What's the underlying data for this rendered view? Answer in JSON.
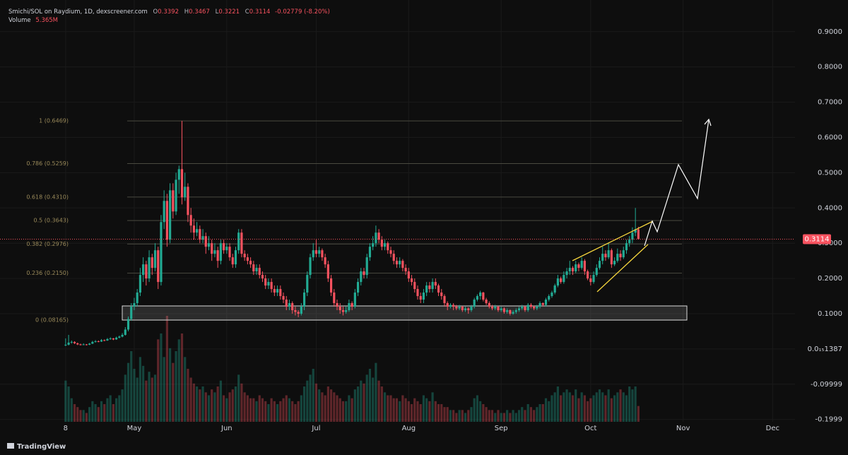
{
  "chart_data": {
    "type": "candlestick",
    "title": "Smichi/SOL on Raydium, 1D, dexscreener.com",
    "ohlc_labels": [
      "O",
      "H",
      "L",
      "C"
    ],
    "change": "-0.02779 (-8.20%)",
    "up_color": "#22ab94",
    "down_color": "#f7525f",
    "candles": [
      [
        0.01,
        0.03,
        0.008,
        0.012
      ],
      [
        0.012,
        0.04,
        0.01,
        0.018
      ],
      [
        0.018,
        0.024,
        0.015,
        0.02
      ],
      [
        0.02,
        0.022,
        0.014,
        0.016
      ],
      [
        0.016,
        0.018,
        0.011,
        0.013
      ],
      [
        0.013,
        0.015,
        0.01,
        0.012
      ],
      [
        0.012,
        0.016,
        0.011,
        0.013
      ],
      [
        0.013,
        0.014,
        0.01,
        0.012
      ],
      [
        0.012,
        0.017,
        0.011,
        0.015
      ],
      [
        0.015,
        0.023,
        0.014,
        0.02
      ],
      [
        0.02,
        0.025,
        0.018,
        0.022
      ],
      [
        0.022,
        0.024,
        0.019,
        0.021
      ],
      [
        0.021,
        0.028,
        0.02,
        0.025
      ],
      [
        0.025,
        0.027,
        0.022,
        0.024
      ],
      [
        0.024,
        0.031,
        0.023,
        0.028
      ],
      [
        0.028,
        0.033,
        0.026,
        0.03
      ],
      [
        0.03,
        0.031,
        0.025,
        0.027
      ],
      [
        0.027,
        0.035,
        0.026,
        0.032
      ],
      [
        0.032,
        0.038,
        0.03,
        0.035
      ],
      [
        0.035,
        0.045,
        0.033,
        0.04
      ],
      [
        0.04,
        0.062,
        0.038,
        0.055
      ],
      [
        0.055,
        0.092,
        0.05,
        0.085
      ],
      [
        0.085,
        0.13,
        0.08,
        0.12
      ],
      [
        0.12,
        0.145,
        0.11,
        0.13
      ],
      [
        0.13,
        0.17,
        0.12,
        0.16
      ],
      [
        0.16,
        0.23,
        0.15,
        0.21
      ],
      [
        0.21,
        0.26,
        0.19,
        0.24
      ],
      [
        0.24,
        0.25,
        0.18,
        0.2
      ],
      [
        0.2,
        0.28,
        0.19,
        0.26
      ],
      [
        0.26,
        0.27,
        0.21,
        0.23
      ],
      [
        0.23,
        0.3,
        0.22,
        0.28
      ],
      [
        0.28,
        0.29,
        0.17,
        0.19
      ],
      [
        0.19,
        0.38,
        0.18,
        0.36
      ],
      [
        0.36,
        0.45,
        0.34,
        0.42
      ],
      [
        0.42,
        0.44,
        0.29,
        0.31
      ],
      [
        0.31,
        0.47,
        0.3,
        0.45
      ],
      [
        0.45,
        0.47,
        0.37,
        0.39
      ],
      [
        0.39,
        0.5,
        0.38,
        0.48
      ],
      [
        0.48,
        0.52,
        0.44,
        0.51
      ],
      [
        0.51,
        0.6469,
        0.41,
        0.43
      ],
      [
        0.43,
        0.5,
        0.42,
        0.46
      ],
      [
        0.46,
        0.47,
        0.36,
        0.38
      ],
      [
        0.38,
        0.4,
        0.33,
        0.35
      ],
      [
        0.35,
        0.37,
        0.31,
        0.33
      ],
      [
        0.33,
        0.36,
        0.32,
        0.34
      ],
      [
        0.34,
        0.35,
        0.3,
        0.31
      ],
      [
        0.31,
        0.34,
        0.3,
        0.32
      ],
      [
        0.32,
        0.33,
        0.27,
        0.29
      ],
      [
        0.29,
        0.32,
        0.28,
        0.3
      ],
      [
        0.3,
        0.31,
        0.25,
        0.27
      ],
      [
        0.27,
        0.3,
        0.26,
        0.28
      ],
      [
        0.28,
        0.29,
        0.23,
        0.25
      ],
      [
        0.25,
        0.31,
        0.24,
        0.3
      ],
      [
        0.3,
        0.31,
        0.27,
        0.28
      ],
      [
        0.28,
        0.3,
        0.27,
        0.29
      ],
      [
        0.29,
        0.3,
        0.25,
        0.26
      ],
      [
        0.26,
        0.27,
        0.23,
        0.24
      ],
      [
        0.24,
        0.29,
        0.23,
        0.28
      ],
      [
        0.28,
        0.34,
        0.27,
        0.33
      ],
      [
        0.33,
        0.34,
        0.26,
        0.27
      ],
      [
        0.27,
        0.28,
        0.25,
        0.26
      ],
      [
        0.26,
        0.27,
        0.24,
        0.25
      ],
      [
        0.25,
        0.26,
        0.23,
        0.24
      ],
      [
        0.24,
        0.25,
        0.21,
        0.22
      ],
      [
        0.22,
        0.24,
        0.21,
        0.23
      ],
      [
        0.23,
        0.24,
        0.2,
        0.21
      ],
      [
        0.21,
        0.22,
        0.19,
        0.2
      ],
      [
        0.2,
        0.21,
        0.17,
        0.18
      ],
      [
        0.18,
        0.2,
        0.17,
        0.19
      ],
      [
        0.19,
        0.2,
        0.16,
        0.17
      ],
      [
        0.17,
        0.18,
        0.15,
        0.16
      ],
      [
        0.16,
        0.18,
        0.15,
        0.17
      ],
      [
        0.17,
        0.18,
        0.14,
        0.15
      ],
      [
        0.15,
        0.16,
        0.13,
        0.14
      ],
      [
        0.14,
        0.15,
        0.11,
        0.12
      ],
      [
        0.12,
        0.14,
        0.11,
        0.13
      ],
      [
        0.13,
        0.135,
        0.1,
        0.11
      ],
      [
        0.11,
        0.12,
        0.095,
        0.105
      ],
      [
        0.105,
        0.11,
        0.09,
        0.1
      ],
      [
        0.1,
        0.13,
        0.095,
        0.12
      ],
      [
        0.12,
        0.17,
        0.11,
        0.16
      ],
      [
        0.16,
        0.22,
        0.15,
        0.21
      ],
      [
        0.21,
        0.27,
        0.2,
        0.26
      ],
      [
        0.26,
        0.3,
        0.25,
        0.28
      ],
      [
        0.28,
        0.31,
        0.26,
        0.27
      ],
      [
        0.27,
        0.29,
        0.26,
        0.28
      ],
      [
        0.28,
        0.285,
        0.25,
        0.26
      ],
      [
        0.26,
        0.27,
        0.23,
        0.24
      ],
      [
        0.24,
        0.25,
        0.19,
        0.2
      ],
      [
        0.2,
        0.21,
        0.15,
        0.16
      ],
      [
        0.16,
        0.17,
        0.12,
        0.13
      ],
      [
        0.13,
        0.14,
        0.11,
        0.12
      ],
      [
        0.12,
        0.13,
        0.1,
        0.11
      ],
      [
        0.11,
        0.12,
        0.095,
        0.105
      ],
      [
        0.105,
        0.12,
        0.1,
        0.11
      ],
      [
        0.11,
        0.14,
        0.105,
        0.13
      ],
      [
        0.13,
        0.135,
        0.11,
        0.12
      ],
      [
        0.12,
        0.17,
        0.115,
        0.16
      ],
      [
        0.16,
        0.2,
        0.15,
        0.19
      ],
      [
        0.19,
        0.23,
        0.18,
        0.22
      ],
      [
        0.22,
        0.23,
        0.2,
        0.21
      ],
      [
        0.21,
        0.27,
        0.2,
        0.26
      ],
      [
        0.26,
        0.3,
        0.25,
        0.29
      ],
      [
        0.29,
        0.32,
        0.28,
        0.3
      ],
      [
        0.3,
        0.35,
        0.29,
        0.33
      ],
      [
        0.33,
        0.34,
        0.3,
        0.31
      ],
      [
        0.31,
        0.32,
        0.28,
        0.29
      ],
      [
        0.29,
        0.31,
        0.28,
        0.3
      ],
      [
        0.3,
        0.305,
        0.27,
        0.28
      ],
      [
        0.28,
        0.29,
        0.26,
        0.27
      ],
      [
        0.27,
        0.28,
        0.24,
        0.25
      ],
      [
        0.25,
        0.26,
        0.23,
        0.24
      ],
      [
        0.24,
        0.26,
        0.23,
        0.25
      ],
      [
        0.25,
        0.255,
        0.22,
        0.23
      ],
      [
        0.23,
        0.24,
        0.21,
        0.22
      ],
      [
        0.22,
        0.23,
        0.19,
        0.2
      ],
      [
        0.2,
        0.21,
        0.18,
        0.19
      ],
      [
        0.19,
        0.2,
        0.16,
        0.17
      ],
      [
        0.17,
        0.18,
        0.14,
        0.15
      ],
      [
        0.15,
        0.16,
        0.13,
        0.14
      ],
      [
        0.14,
        0.17,
        0.13,
        0.16
      ],
      [
        0.16,
        0.19,
        0.15,
        0.18
      ],
      [
        0.18,
        0.19,
        0.16,
        0.17
      ],
      [
        0.17,
        0.2,
        0.16,
        0.19
      ],
      [
        0.19,
        0.2,
        0.17,
        0.18
      ],
      [
        0.18,
        0.185,
        0.15,
        0.16
      ],
      [
        0.16,
        0.17,
        0.14,
        0.15
      ],
      [
        0.15,
        0.155,
        0.12,
        0.13
      ],
      [
        0.13,
        0.135,
        0.11,
        0.12
      ],
      [
        0.12,
        0.13,
        0.115,
        0.125
      ],
      [
        0.125,
        0.13,
        0.11,
        0.12
      ],
      [
        0.12,
        0.125,
        0.11,
        0.115
      ],
      [
        0.115,
        0.125,
        0.11,
        0.12
      ],
      [
        0.12,
        0.122,
        0.105,
        0.11
      ],
      [
        0.11,
        0.12,
        0.105,
        0.115
      ],
      [
        0.115,
        0.118,
        0.1,
        0.11
      ],
      [
        0.11,
        0.125,
        0.105,
        0.12
      ],
      [
        0.12,
        0.145,
        0.115,
        0.14
      ],
      [
        0.14,
        0.155,
        0.135,
        0.15
      ],
      [
        0.15,
        0.165,
        0.14,
        0.16
      ],
      [
        0.16,
        0.162,
        0.135,
        0.14
      ],
      [
        0.14,
        0.145,
        0.125,
        0.13
      ],
      [
        0.13,
        0.135,
        0.115,
        0.12
      ],
      [
        0.12,
        0.125,
        0.11,
        0.115
      ],
      [
        0.115,
        0.125,
        0.11,
        0.12
      ],
      [
        0.12,
        0.122,
        0.105,
        0.11
      ],
      [
        0.11,
        0.12,
        0.105,
        0.115
      ],
      [
        0.115,
        0.118,
        0.1,
        0.105
      ],
      [
        0.105,
        0.115,
        0.1,
        0.11
      ],
      [
        0.11,
        0.112,
        0.095,
        0.1
      ],
      [
        0.1,
        0.11,
        0.097,
        0.105
      ],
      [
        0.105,
        0.115,
        0.1,
        0.11
      ],
      [
        0.11,
        0.12,
        0.105,
        0.115
      ],
      [
        0.115,
        0.125,
        0.11,
        0.12
      ],
      [
        0.12,
        0.122,
        0.105,
        0.11
      ],
      [
        0.11,
        0.13,
        0.105,
        0.125
      ],
      [
        0.125,
        0.13,
        0.115,
        0.12
      ],
      [
        0.12,
        0.122,
        0.11,
        0.115
      ],
      [
        0.115,
        0.125,
        0.11,
        0.12
      ],
      [
        0.12,
        0.135,
        0.115,
        0.13
      ],
      [
        0.13,
        0.132,
        0.12,
        0.125
      ],
      [
        0.125,
        0.145,
        0.12,
        0.14
      ],
      [
        0.14,
        0.155,
        0.135,
        0.15
      ],
      [
        0.15,
        0.165,
        0.145,
        0.16
      ],
      [
        0.16,
        0.185,
        0.155,
        0.18
      ],
      [
        0.18,
        0.21,
        0.175,
        0.2
      ],
      [
        0.2,
        0.205,
        0.185,
        0.19
      ],
      [
        0.19,
        0.22,
        0.185,
        0.21
      ],
      [
        0.21,
        0.23,
        0.2,
        0.22
      ],
      [
        0.22,
        0.25,
        0.21,
        0.23
      ],
      [
        0.23,
        0.235,
        0.21,
        0.22
      ],
      [
        0.22,
        0.25,
        0.215,
        0.24
      ],
      [
        0.24,
        0.245,
        0.22,
        0.23
      ],
      [
        0.23,
        0.26,
        0.225,
        0.25
      ],
      [
        0.25,
        0.255,
        0.21,
        0.22
      ],
      [
        0.22,
        0.225,
        0.195,
        0.2
      ],
      [
        0.2,
        0.21,
        0.18,
        0.19
      ],
      [
        0.19,
        0.22,
        0.185,
        0.21
      ],
      [
        0.21,
        0.24,
        0.205,
        0.23
      ],
      [
        0.23,
        0.26,
        0.225,
        0.25
      ],
      [
        0.25,
        0.29,
        0.24,
        0.27
      ],
      [
        0.27,
        0.28,
        0.25,
        0.26
      ],
      [
        0.26,
        0.3,
        0.255,
        0.28
      ],
      [
        0.28,
        0.285,
        0.23,
        0.24
      ],
      [
        0.24,
        0.26,
        0.235,
        0.25
      ],
      [
        0.25,
        0.285,
        0.245,
        0.27
      ],
      [
        0.27,
        0.28,
        0.25,
        0.26
      ],
      [
        0.26,
        0.29,
        0.255,
        0.28
      ],
      [
        0.28,
        0.31,
        0.27,
        0.3
      ],
      [
        0.3,
        0.32,
        0.29,
        0.31
      ],
      [
        0.31,
        0.345,
        0.3,
        0.33
      ],
      [
        0.33,
        0.4,
        0.32,
        0.3392
      ],
      [
        0.3392,
        0.3467,
        0.3221,
        0.3114
      ]
    ],
    "volume": {
      "name": "Volume",
      "last_label": "5.365M",
      "values": [
        14,
        12,
        8,
        6,
        5,
        4,
        4,
        3,
        5,
        7,
        6,
        5,
        7,
        6,
        8,
        9,
        6,
        8,
        9,
        11,
        16,
        20,
        24,
        18,
        15,
        22,
        19,
        14,
        17,
        15,
        16,
        28,
        30,
        22,
        36,
        25,
        20,
        24,
        28,
        30,
        22,
        18,
        15,
        13,
        12,
        11,
        12,
        10,
        9,
        11,
        10,
        12,
        14,
        9,
        8,
        10,
        11,
        12,
        16,
        13,
        10,
        9,
        8,
        8,
        7,
        9,
        8,
        7,
        6,
        8,
        7,
        6,
        7,
        8,
        9,
        8,
        7,
        6,
        7,
        9,
        12,
        14,
        16,
        18,
        13,
        11,
        10,
        9,
        12,
        11,
        10,
        9,
        8,
        7,
        7,
        9,
        8,
        11,
        12,
        14,
        13,
        16,
        18,
        15,
        20,
        14,
        12,
        10,
        9,
        9,
        8,
        8,
        7,
        9,
        8,
        7,
        6,
        8,
        7,
        6,
        9,
        8,
        7,
        10,
        7,
        6,
        6,
        5,
        5,
        4,
        4,
        3,
        4,
        4,
        3,
        4,
        5,
        8,
        9,
        7,
        6,
        5,
        4,
        4,
        3,
        4,
        3,
        3,
        4,
        3,
        4,
        3,
        4,
        5,
        4,
        6,
        5,
        4,
        5,
        6,
        6,
        8,
        7,
        9,
        10,
        12,
        9,
        10,
        11,
        10,
        9,
        11,
        8,
        10,
        9,
        7,
        8,
        9,
        10,
        11,
        10,
        9,
        11,
        8,
        9,
        10,
        11,
        10,
        9,
        12,
        11,
        12,
        5.365
      ]
    },
    "xlim": [
      -22,
      244.5
    ],
    "xticks": [
      {
        "value": 0,
        "label": "8"
      },
      {
        "value": 23,
        "label": "May"
      },
      {
        "value": 54,
        "label": "Jun"
      },
      {
        "value": 84,
        "label": "Jul"
      },
      {
        "value": 115,
        "label": "Aug"
      },
      {
        "value": 146,
        "label": "Sep"
      },
      {
        "value": 176,
        "label": "Oct"
      },
      {
        "value": 207,
        "label": "Nov"
      },
      {
        "value": 237,
        "label": "Dec"
      }
    ],
    "ylim": [
      -0.2066,
      0.9898
    ],
    "yticks": [
      {
        "value": 0.9,
        "label": "0.9000"
      },
      {
        "value": 0.8,
        "label": "0.8000"
      },
      {
        "value": 0.7,
        "label": "0.7000"
      },
      {
        "value": 0.6,
        "label": "0.6000"
      },
      {
        "value": 0.5,
        "label": "0.5000"
      },
      {
        "value": 0.4,
        "label": "0.4000"
      },
      {
        "value": 0.3,
        "label": "0.3000"
      },
      {
        "value": 0.2,
        "label": "0.2000"
      },
      {
        "value": 0.1,
        "label": "0.1000"
      },
      {
        "value": 1.387e-16,
        "label": "0.0₁₅1387"
      },
      -0.09999,
      -0.1999
    ],
    "fib_levels": [
      {
        "value": 0.6469,
        "label": "1 (0.6469)"
      },
      {
        "value": 0.5259,
        "label": "0.786 (0.5259)"
      },
      {
        "value": 0.431,
        "label": "0.618 (0.4310)"
      },
      {
        "value": 0.3643,
        "label": "0.5 (0.3643)"
      },
      {
        "value": 0.2976,
        "label": "0.382 (0.2976)"
      },
      {
        "value": 0.215,
        "label": "0.236 (0.2150)"
      },
      {
        "value": 0.08165,
        "label": "0 (0.08165)"
      }
    ],
    "grid": true,
    "branding": "TradingView"
  }
}
